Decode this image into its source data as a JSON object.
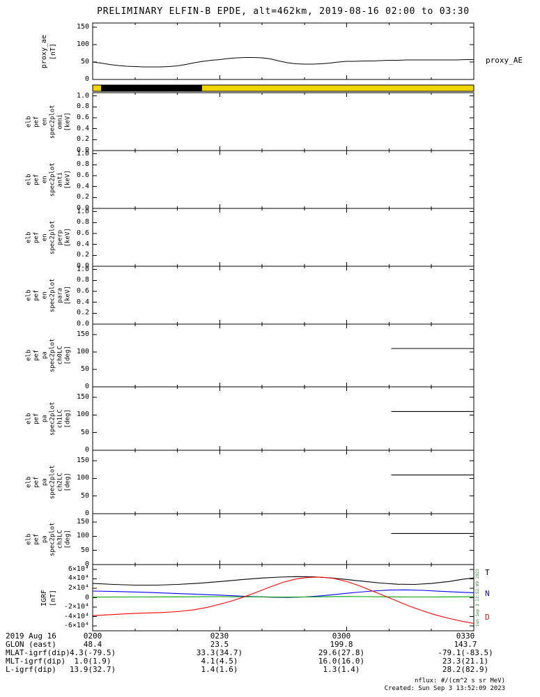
{
  "title": "PRELIMINARY ELFIN-B EPDE, alt=462km, 2019-08-16 02:00 to 03:30",
  "right_labels": {
    "proxy_ae": "proxy_AE",
    "igrf": [
      {
        "text": "T",
        "color": "#000000"
      },
      {
        "text": "N",
        "color": "#0000ff"
      },
      {
        "text": "D",
        "color": "#ff0000"
      }
    ]
  },
  "side_timestamp": "Sun Sep  3 13:52:09 2023",
  "footer_notes": {
    "units": "nflux: #/(cm^2 s sr MeV)",
    "created": "Created: Sun Sep  3 13:52:09 2023"
  },
  "footer_table": {
    "rows": [
      {
        "label": "2019 Aug 16",
        "values": [
          "0200",
          "0230",
          "0300",
          "0330"
        ]
      },
      {
        "label": "GLON (east)",
        "values": [
          "48.4",
          "23.5",
          "199.8",
          "143.7"
        ]
      },
      {
        "label": "MLAT-igrf(dip)",
        "values": [
          "4.3(-79.5)",
          "33.3(34.7)",
          "29.6(27.8)",
          "-79.1(-83.5)"
        ]
      },
      {
        "label": "MLT-igrf(dip)",
        "values": [
          "1.0(1.9)",
          "4.1(4.5)",
          "16.0(16.0)",
          "23.3(21.1)"
        ]
      },
      {
        "label": "L-igrf(dip)",
        "values": [
          "13.9(32.7)",
          "1.4(1.6)",
          "1.3(1.4)",
          "28.2(82.9)"
        ]
      }
    ]
  },
  "chart_data": {
    "time_axis": {
      "xlim_minutes": [
        0,
        90
      ],
      "start_time": "2019-08-16 02:00",
      "major_tick_minutes": [
        0,
        30,
        60,
        90
      ],
      "major_tick_labels": [
        "0200",
        "0230",
        "0300",
        "0330"
      ],
      "minor_tick_step_minutes": 10
    },
    "proxy": {
      "type": "line",
      "ylabel_lines": "proxy_ae\n[nT]",
      "ylim": [
        0,
        162
      ],
      "yticks": [
        0,
        50,
        100,
        150
      ],
      "ytick_labels": [
        "0",
        "50",
        "100",
        "150"
      ],
      "series": [
        {
          "name": "proxy_AE",
          "color": "#000000",
          "points": [
            [
              0,
              50
            ],
            [
              2,
              47
            ],
            [
              4,
              43
            ],
            [
              6,
              40
            ],
            [
              8,
              38
            ],
            [
              10,
              37
            ],
            [
              12,
              36
            ],
            [
              14,
              36
            ],
            [
              16,
              36
            ],
            [
              18,
              37
            ],
            [
              20,
              39
            ],
            [
              22,
              43
            ],
            [
              24,
              48
            ],
            [
              26,
              52
            ],
            [
              28,
              55
            ],
            [
              30,
              57
            ],
            [
              32,
              60
            ],
            [
              34,
              62
            ],
            [
              36,
              63
            ],
            [
              38,
              63
            ],
            [
              40,
              62
            ],
            [
              42,
              59
            ],
            [
              44,
              53
            ],
            [
              46,
              48
            ],
            [
              48,
              45
            ],
            [
              50,
              44
            ],
            [
              52,
              44
            ],
            [
              54,
              45
            ],
            [
              56,
              47
            ],
            [
              58,
              50
            ],
            [
              60,
              52
            ],
            [
              62,
              52
            ],
            [
              64,
              53
            ],
            [
              66,
              53
            ],
            [
              68,
              54
            ],
            [
              70,
              55
            ],
            [
              72,
              55
            ],
            [
              74,
              56
            ],
            [
              76,
              56
            ],
            [
              78,
              56
            ],
            [
              80,
              56
            ],
            [
              82,
              56
            ],
            [
              84,
              56
            ],
            [
              86,
              56
            ],
            [
              88,
              57
            ],
            [
              90,
              57
            ]
          ]
        }
      ]
    },
    "flagbar": {
      "type": "flag-strip",
      "segments": [
        {
          "start_min": 0,
          "end_min": 2,
          "color": "#efd500"
        },
        {
          "start_min": 2,
          "end_min": 25.8,
          "color": "#000000"
        },
        {
          "start_min": 25.8,
          "end_min": 90,
          "color": "#efd500"
        }
      ]
    },
    "en_omni": {
      "type": "spectrogram-empty",
      "ylabel_lines": "elb\npef\nen\nspec2plot\nomni\n[keV]",
      "ylim": [
        0,
        1.06
      ],
      "yticks": [
        0,
        0.2,
        0.4,
        0.6,
        0.8,
        1.0
      ],
      "ytick_labels": [
        "0.0",
        "0.2",
        "0.4",
        "0.6",
        "0.8",
        "1.0"
      ],
      "series": []
    },
    "en_anti": {
      "type": "spectrogram-empty",
      "ylabel_lines": "elb\npef\nen\nspec2plot\nanti\n[keV]",
      "ylim": [
        0,
        1.06
      ],
      "yticks": [
        0,
        0.2,
        0.4,
        0.6,
        0.8,
        1.0
      ],
      "ytick_labels": [
        "0.0",
        "0.2",
        "0.4",
        "0.6",
        "0.8",
        "1.0"
      ],
      "series": []
    },
    "en_perp": {
      "type": "spectrogram-empty",
      "ylabel_lines": "elb\npef\nen\nspec2plot\nperp\n[keV]",
      "ylim": [
        0,
        1.06
      ],
      "yticks": [
        0,
        0.2,
        0.4,
        0.6,
        0.8,
        1.0
      ],
      "ytick_labels": [
        "0.0",
        "0.2",
        "0.4",
        "0.6",
        "0.8",
        "1.0"
      ],
      "series": []
    },
    "en_para": {
      "type": "spectrogram-empty",
      "ylabel_lines": "elb\npef\nen\nspec2plot\npara\n[keV]",
      "ylim": [
        0,
        1.06
      ],
      "yticks": [
        0,
        0.2,
        0.4,
        0.6,
        0.8,
        1.0
      ],
      "ytick_labels": [
        "0.0",
        "0.2",
        "0.4",
        "0.6",
        "0.8",
        "1.0"
      ],
      "series": []
    },
    "pa_ch0": {
      "type": "line",
      "ylabel_lines": "elb\npef\npa\nspec2plot\nch0LC\n[deg]",
      "ylim": [
        0,
        180
      ],
      "yticks": [
        0,
        50,
        100,
        150
      ],
      "ytick_labels": [
        "0",
        "50",
        "100",
        "150"
      ],
      "series": [
        {
          "name": "loss-cone",
          "color": "#000000",
          "points": [
            [
              70.5,
              110
            ],
            [
              90,
              110
            ]
          ]
        }
      ]
    },
    "pa_ch1": {
      "type": "line",
      "ylabel_lines": "elb\npef\npa\nspec2plot\nch1LC\n[deg]",
      "ylim": [
        0,
        180
      ],
      "yticks": [
        0,
        50,
        100,
        150
      ],
      "ytick_labels": [
        "0",
        "50",
        "100",
        "150"
      ],
      "series": [
        {
          "name": "loss-cone",
          "color": "#000000",
          "points": [
            [
              70.5,
              110
            ],
            [
              90,
              110
            ]
          ]
        }
      ]
    },
    "pa_ch2": {
      "type": "line",
      "ylabel_lines": "elb\npef\npa\nspec2plot\nch2LC\n[deg]",
      "ylim": [
        0,
        180
      ],
      "yticks": [
        0,
        50,
        100,
        150
      ],
      "ytick_labels": [
        "0",
        "50",
        "100",
        "150"
      ],
      "series": [
        {
          "name": "loss-cone",
          "color": "#000000",
          "points": [
            [
              70.5,
              110
            ],
            [
              90,
              110
            ]
          ]
        }
      ]
    },
    "pa_ch3": {
      "type": "line",
      "ylabel_lines": "elb\npef\npa\nspec2plot\nch3LC\n[deg]",
      "ylim": [
        0,
        180
      ],
      "yticks": [
        0,
        50,
        100,
        150
      ],
      "ytick_labels": [
        "0",
        "50",
        "100",
        "150"
      ],
      "series": [
        {
          "name": "loss-cone",
          "color": "#000000",
          "points": [
            [
              70.5,
              110
            ],
            [
              90,
              110
            ]
          ]
        }
      ]
    },
    "igrf": {
      "type": "line",
      "ylabel_lines": "IGRF\n[nT]",
      "ylim": [
        -70000,
        70000
      ],
      "yticks": [
        -60000,
        -40000,
        -20000,
        0,
        20000,
        40000,
        60000
      ],
      "ytick_labels": [
        "-6×10⁴",
        "-4×10⁴",
        "-2×10⁴",
        "0",
        "2×10⁴",
        "4×10⁴",
        "6×10⁴"
      ],
      "series": [
        {
          "name": "T",
          "color": "#000000",
          "points": [
            [
              0,
              30000
            ],
            [
              5,
              28000
            ],
            [
              10,
              26500
            ],
            [
              15,
              26500
            ],
            [
              20,
              28000
            ],
            [
              25,
              30500
            ],
            [
              30,
              34000
            ],
            [
              35,
              38000
            ],
            [
              40,
              41500
            ],
            [
              44,
              43500
            ],
            [
              48,
              44500
            ],
            [
              52,
              44000
            ],
            [
              56,
              42000
            ],
            [
              60,
              38500
            ],
            [
              64,
              34500
            ],
            [
              68,
              31000
            ],
            [
              72,
              28500
            ],
            [
              76,
              28000
            ],
            [
              80,
              30000
            ],
            [
              84,
              34000
            ],
            [
              87,
              38500
            ],
            [
              90,
              42000
            ]
          ]
        },
        {
          "name": "N",
          "color": "#0000ff",
          "points": [
            [
              0,
              14000
            ],
            [
              6,
              13000
            ],
            [
              12,
              11500
            ],
            [
              18,
              9500
            ],
            [
              24,
              7500
            ],
            [
              30,
              5500
            ],
            [
              36,
              3000
            ],
            [
              42,
              1000
            ],
            [
              46,
              500
            ],
            [
              50,
              1500
            ],
            [
              54,
              4000
            ],
            [
              58,
              7500
            ],
            [
              62,
              11000
            ],
            [
              66,
              14000
            ],
            [
              70,
              16000
            ],
            [
              74,
              16500
            ],
            [
              78,
              15500
            ],
            [
              82,
              13500
            ],
            [
              86,
              12000
            ],
            [
              90,
              10500
            ]
          ]
        },
        {
          "name": "E",
          "color": "#00a000",
          "points": [
            [
              0,
              1200
            ],
            [
              10,
              1500
            ],
            [
              20,
              1800
            ],
            [
              30,
              2200
            ],
            [
              40,
              1800
            ],
            [
              45,
              1200
            ],
            [
              50,
              1500
            ],
            [
              55,
              2000
            ],
            [
              60,
              2500
            ],
            [
              65,
              2200
            ],
            [
              70,
              1800
            ],
            [
              75,
              1500
            ],
            [
              80,
              1500
            ],
            [
              85,
              1800
            ],
            [
              90,
              2000
            ]
          ]
        },
        {
          "name": "D",
          "color": "#ff0000",
          "points": [
            [
              0,
              -38000
            ],
            [
              4,
              -36000
            ],
            [
              8,
              -34000
            ],
            [
              12,
              -32500
            ],
            [
              16,
              -31500
            ],
            [
              20,
              -29500
            ],
            [
              24,
              -25500
            ],
            [
              27,
              -20500
            ],
            [
              30,
              -14000
            ],
            [
              33,
              -6500
            ],
            [
              36,
              2500
            ],
            [
              39,
              12500
            ],
            [
              42,
              23000
            ],
            [
              45,
              32500
            ],
            [
              48,
              39500
            ],
            [
              51,
              43000
            ],
            [
              54,
              43500
            ],
            [
              57,
              40500
            ],
            [
              60,
              34000
            ],
            [
              63,
              25000
            ],
            [
              66,
              14500
            ],
            [
              69,
              3500
            ],
            [
              72,
              -7500
            ],
            [
              75,
              -18500
            ],
            [
              78,
              -28000
            ],
            [
              81,
              -36500
            ],
            [
              84,
              -43500
            ],
            [
              87,
              -49500
            ],
            [
              90,
              -54500
            ]
          ]
        }
      ]
    }
  }
}
